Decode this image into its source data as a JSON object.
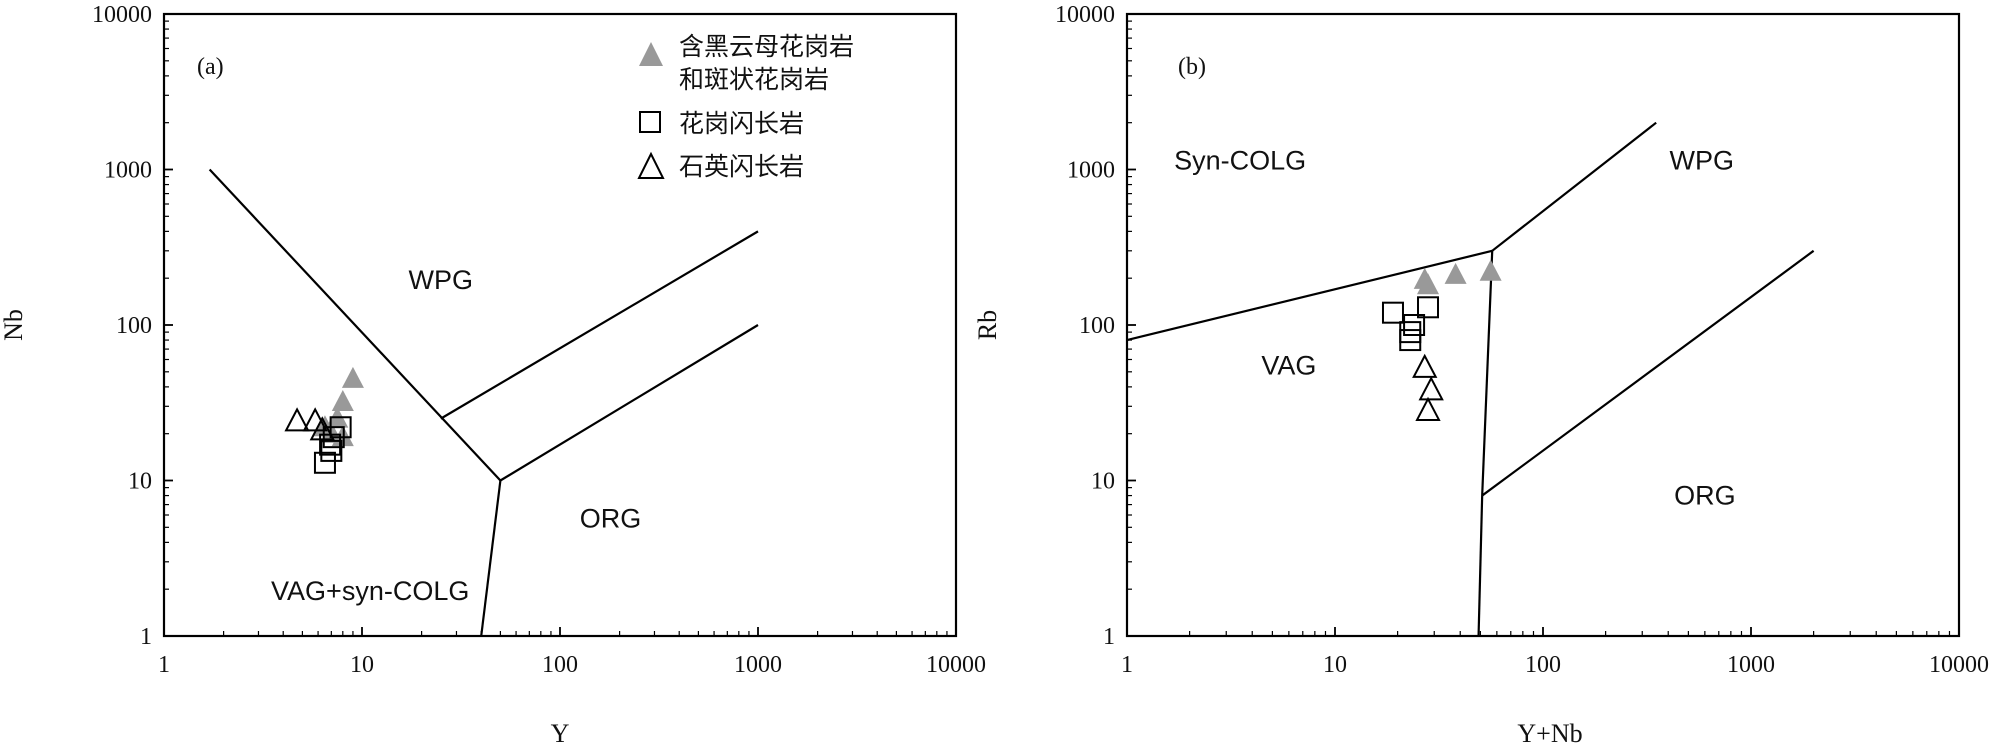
{
  "chart_data": [
    {
      "type": "scatter",
      "panel_label": "(a)",
      "xlabel": "Y",
      "ylabel": "Nb",
      "x_scale": "log",
      "y_scale": "log",
      "xlim": [
        1,
        10000
      ],
      "ylim": [
        1,
        10000
      ],
      "x_ticks": [
        "1",
        "10",
        "100",
        "1000",
        "10000"
      ],
      "y_ticks": [
        "1",
        "10",
        "100",
        "1000",
        "10000"
      ],
      "grid": false,
      "legend_position": "top-right",
      "legend": [
        {
          "marker": "filled-triangle",
          "color": "#999999",
          "lines": [
            "含黑云母花岗岩",
            "和斑状花岗岩"
          ]
        },
        {
          "marker": "open-square",
          "color": "#000000",
          "lines": [
            "花岗闪长岩"
          ]
        },
        {
          "marker": "open-triangle",
          "color": "#000000",
          "lines": [
            "石英闪长岩"
          ]
        }
      ],
      "region_labels": [
        {
          "text": "WPG",
          "x": 25,
          "y": 170
        },
        {
          "text": "ORG",
          "x": 180,
          "y": 5
        },
        {
          "text": "VAG+syn-COLG",
          "x": 11,
          "y": 1.7
        }
      ],
      "boundary_lines": [
        [
          [
            1.7,
            1000
          ],
          [
            50,
            10
          ]
        ],
        [
          [
            50,
            10
          ],
          [
            40,
            1
          ]
        ],
        [
          [
            50,
            10
          ],
          [
            1000,
            100
          ]
        ],
        [
          [
            25,
            25
          ],
          [
            1000,
            400
          ]
        ]
      ],
      "series": [
        {
          "marker": "filled-triangle",
          "points": [
            [
              9,
              45
            ],
            [
              8,
              32
            ],
            [
              7.5,
              25
            ],
            [
              6.5,
              22
            ],
            [
              7,
              20
            ],
            [
              8,
              19
            ]
          ]
        },
        {
          "marker": "open-square",
          "points": [
            [
              7.8,
              22
            ],
            [
              7.2,
              19
            ],
            [
              6.9,
              17
            ],
            [
              7,
              15.5
            ],
            [
              6.5,
              13
            ]
          ]
        },
        {
          "marker": "open-triangle",
          "points": [
            [
              4.7,
              24
            ],
            [
              5.8,
              24
            ],
            [
              6.3,
              21
            ]
          ]
        }
      ]
    },
    {
      "type": "scatter",
      "panel_label": "(b)",
      "xlabel": "Y+Nb",
      "ylabel": "Rb",
      "x_scale": "log",
      "y_scale": "log",
      "xlim": [
        1,
        10000
      ],
      "ylim": [
        1,
        10000
      ],
      "x_ticks": [
        "1",
        "10",
        "100",
        "1000",
        "10000"
      ],
      "y_ticks": [
        "1",
        "10",
        "100",
        "1000",
        "10000"
      ],
      "grid": false,
      "region_labels": [
        {
          "text": "Syn-COLG",
          "x": 3.5,
          "y": 1000
        },
        {
          "text": "WPG",
          "x": 580,
          "y": 1000
        },
        {
          "text": "VAG",
          "x": 6,
          "y": 48
        },
        {
          "text": "ORG",
          "x": 600,
          "y": 7
        }
      ],
      "boundary_lines": [
        [
          [
            1,
            80
          ],
          [
            57,
            300
          ]
        ],
        [
          [
            57,
            300
          ],
          [
            350,
            2000
          ]
        ],
        [
          [
            57,
            300
          ],
          [
            51,
            8
          ]
        ],
        [
          [
            51,
            8
          ],
          [
            49,
            1
          ]
        ],
        [
          [
            51,
            8
          ],
          [
            2000,
            300
          ]
        ]
      ],
      "series": [
        {
          "marker": "filled-triangle",
          "points": [
            [
              27,
              195
            ],
            [
              28,
              180
            ],
            [
              38,
              210
            ],
            [
              56,
              220
            ]
          ]
        },
        {
          "marker": "open-square",
          "points": [
            [
              19,
              120
            ],
            [
              28,
              130
            ],
            [
              24,
              100
            ],
            [
              23,
              90
            ],
            [
              23,
              80
            ]
          ]
        },
        {
          "marker": "open-triangle",
          "points": [
            [
              27,
              53
            ],
            [
              29,
              38
            ],
            [
              28,
              28
            ]
          ]
        }
      ]
    }
  ]
}
